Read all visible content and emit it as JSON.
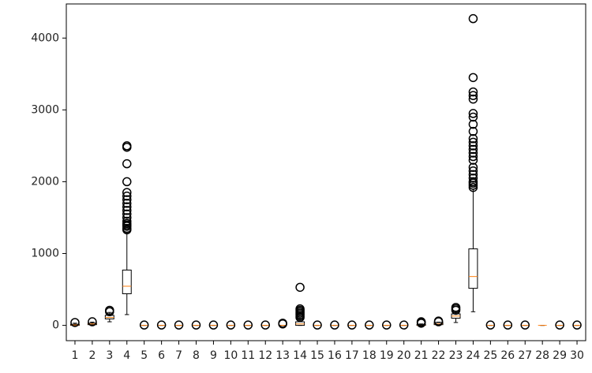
{
  "chart_data": {
    "type": "box",
    "categories": [
      "1",
      "2",
      "3",
      "4",
      "5",
      "6",
      "7",
      "8",
      "9",
      "10",
      "11",
      "12",
      "13",
      "14",
      "15",
      "16",
      "17",
      "18",
      "19",
      "20",
      "21",
      "22",
      "23",
      "24",
      "25",
      "26",
      "27",
      "28",
      "29",
      "30"
    ],
    "boxes": [
      {
        "q1": 0,
        "median": 5,
        "q3": 15,
        "whislo": 0,
        "whishi": 30,
        "fliers": [
          40
        ]
      },
      {
        "q1": 10,
        "median": 20,
        "q3": 30,
        "whislo": 0,
        "whishi": 45,
        "fliers": [
          50
        ]
      },
      {
        "q1": 90,
        "median": 110,
        "q3": 140,
        "whislo": 50,
        "whishi": 180,
        "fliers": [
          190,
          210
        ]
      },
      {
        "q1": 440,
        "median": 545,
        "q3": 770,
        "whislo": 150,
        "whishi": 1300,
        "fliers": [
          1330,
          1350,
          1380,
          1400,
          1420,
          1450,
          1500,
          1550,
          1600,
          1650,
          1700,
          1750,
          1800,
          1850,
          2000,
          2250,
          2480,
          2500
        ]
      },
      {
        "q1": 0,
        "median": 0,
        "q3": 0,
        "whislo": 0,
        "whishi": 0,
        "fliers": [
          5
        ]
      },
      {
        "q1": 0,
        "median": 0,
        "q3": 0,
        "whislo": 0,
        "whishi": 0,
        "fliers": [
          5
        ]
      },
      {
        "q1": 0,
        "median": 0,
        "q3": 0,
        "whislo": 0,
        "whishi": 0,
        "fliers": [
          5
        ]
      },
      {
        "q1": 0,
        "median": 0,
        "q3": 0,
        "whislo": 0,
        "whishi": 0,
        "fliers": [
          5
        ]
      },
      {
        "q1": 0,
        "median": 0,
        "q3": 0,
        "whislo": 0,
        "whishi": 0,
        "fliers": [
          5
        ]
      },
      {
        "q1": 0,
        "median": 0,
        "q3": 0,
        "whislo": 0,
        "whishi": 0,
        "fliers": [
          5
        ]
      },
      {
        "q1": 0,
        "median": 0,
        "q3": 0,
        "whislo": 0,
        "whishi": 0,
        "fliers": [
          5
        ]
      },
      {
        "q1": 0,
        "median": 0,
        "q3": 0,
        "whislo": 0,
        "whishi": 0,
        "fliers": [
          5
        ]
      },
      {
        "q1": 0,
        "median": 0,
        "q3": 0,
        "whislo": 0,
        "whishi": 0,
        "fliers": [
          20,
          30
        ]
      },
      {
        "q1": 0,
        "median": 20,
        "q3": 50,
        "whislo": 0,
        "whishi": 100,
        "fliers": [
          110,
          130,
          150,
          170,
          190,
          210,
          230,
          530
        ]
      },
      {
        "q1": 0,
        "median": 0,
        "q3": 0,
        "whislo": 0,
        "whishi": 0,
        "fliers": [
          5
        ]
      },
      {
        "q1": 0,
        "median": 0,
        "q3": 0,
        "whislo": 0,
        "whishi": 0,
        "fliers": [
          5
        ]
      },
      {
        "q1": 0,
        "median": 0,
        "q3": 0,
        "whislo": 0,
        "whishi": 0,
        "fliers": [
          5
        ]
      },
      {
        "q1": 0,
        "median": 0,
        "q3": 0,
        "whislo": 0,
        "whishi": 0,
        "fliers": [
          5
        ]
      },
      {
        "q1": 0,
        "median": 0,
        "q3": 0,
        "whislo": 0,
        "whishi": 0,
        "fliers": [
          5
        ]
      },
      {
        "q1": 0,
        "median": 0,
        "q3": 0,
        "whislo": 0,
        "whishi": 0,
        "fliers": [
          5
        ]
      },
      {
        "q1": 0,
        "median": 0,
        "q3": 10,
        "whislo": 0,
        "whishi": 20,
        "fliers": [
          30,
          40,
          50
        ]
      },
      {
        "q1": 10,
        "median": 20,
        "q3": 40,
        "whislo": 0,
        "whishi": 45,
        "fliers": [
          50,
          60
        ]
      },
      {
        "q1": 100,
        "median": 130,
        "q3": 160,
        "whislo": 40,
        "whishi": 200,
        "fliers": [
          210,
          230,
          250
        ]
      },
      {
        "q1": 516,
        "median": 680,
        "q3": 1065,
        "whislo": 190,
        "whishi": 1900,
        "fliers": [
          1920,
          1950,
          1980,
          2000,
          2050,
          2100,
          2150,
          2200,
          2300,
          2350,
          2400,
          2450,
          2500,
          2550,
          2600,
          2700,
          2800,
          2900,
          2950,
          3150,
          3200,
          3250,
          3450,
          4270
        ]
      },
      {
        "q1": 0,
        "median": 0,
        "q3": 0,
        "whislo": 0,
        "whishi": 0,
        "fliers": [
          5
        ]
      },
      {
        "q1": 0,
        "median": 0,
        "q3": 0,
        "whislo": 0,
        "whishi": 0,
        "fliers": [
          5
        ]
      },
      {
        "q1": 0,
        "median": 0,
        "q3": 0,
        "whislo": 0,
        "whishi": 0,
        "fliers": [
          5
        ]
      },
      {
        "q1": 0,
        "median": 0,
        "q3": 0,
        "whislo": 0,
        "whishi": 0,
        "fliers": []
      },
      {
        "q1": 0,
        "median": 0,
        "q3": 0,
        "whislo": 0,
        "whishi": 0,
        "fliers": [
          5
        ]
      },
      {
        "q1": 0,
        "median": 0,
        "q3": 0,
        "whislo": 0,
        "whishi": 0,
        "fliers": [
          5
        ]
      }
    ],
    "box_color": "#000000",
    "median_color": "#ff7f0e",
    "ylim": [
      -213,
      4475
    ],
    "yticks": [
      0,
      1000,
      2000,
      3000,
      4000
    ],
    "grid": false
  }
}
